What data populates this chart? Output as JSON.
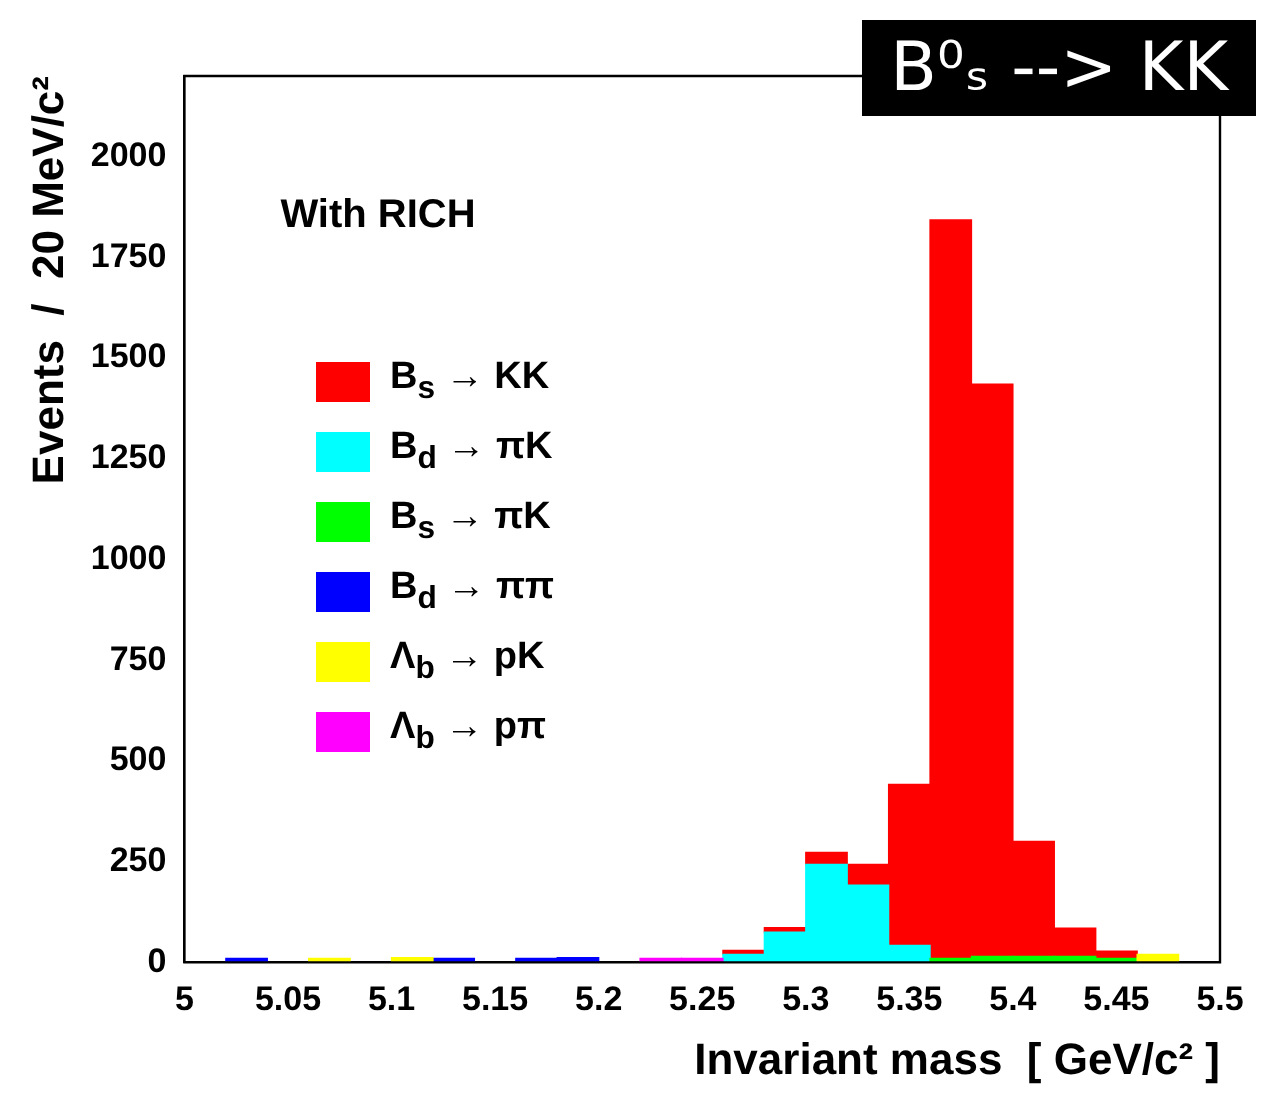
{
  "chart_data": {
    "type": "bar",
    "title": "B⁰ₛ --> KK",
    "xlabel": "Invariant mass  [ GeV/c² ]",
    "ylabel": "Events  /  20 MeV/c²",
    "annotations": [
      "With RICH"
    ],
    "x": [
      5.03,
      5.05,
      5.07,
      5.09,
      5.11,
      5.13,
      5.15,
      5.17,
      5.19,
      5.21,
      5.23,
      5.25,
      5.27,
      5.29,
      5.31,
      5.33,
      5.35,
      5.37,
      5.39,
      5.41,
      5.43,
      5.45,
      5.47
    ],
    "stacked": true,
    "series": [
      {
        "name": "Λ$_{b}$ → pπ",
        "color": "#ff00ff",
        "values": [
          null,
          null,
          null,
          null,
          null,
          null,
          null,
          null,
          null,
          null,
          10,
          10,
          null,
          null,
          null,
          null,
          null,
          null,
          null,
          null,
          null,
          null,
          null
        ]
      },
      {
        "name": "Λ$_{b}$ → pK",
        "color": "#ffff00",
        "values": [
          null,
          null,
          10,
          null,
          12,
          null,
          null,
          null,
          null,
          null,
          null,
          null,
          null,
          null,
          null,
          null,
          null,
          null,
          null,
          null,
          null,
          null,
          20
        ]
      },
      {
        "name": "B$_{d}$ → ππ",
        "color": "#0000ff",
        "values": [
          10,
          null,
          null,
          null,
          null,
          10,
          null,
          10,
          12,
          null,
          null,
          null,
          null,
          null,
          null,
          null,
          null,
          null,
          null,
          null,
          null,
          null,
          null
        ]
      },
      {
        "name": "B$_{s}$ → πK",
        "color": "#00ff00",
        "values": [
          null,
          null,
          null,
          null,
          null,
          null,
          null,
          null,
          null,
          null,
          null,
          null,
          null,
          null,
          null,
          null,
          null,
          10,
          15,
          15,
          15,
          10,
          null
        ]
      },
      {
        "name": "B$_{d}$ → πK",
        "color": "#00ffff",
        "values": [
          null,
          null,
          null,
          null,
          null,
          null,
          null,
          null,
          null,
          null,
          null,
          null,
          20,
          75,
          243,
          192,
          42,
          null,
          null,
          null,
          null,
          null,
          null
        ]
      },
      {
        "name": "B$_{s}$ → KK",
        "color": "#ff0000",
        "values": [
          null,
          null,
          null,
          null,
          null,
          null,
          null,
          null,
          null,
          null,
          null,
          null,
          10,
          11,
          30,
          51,
          400,
          1833,
          1420,
          285,
          70,
          18,
          null
        ]
      }
    ],
    "xlim": [
      5,
      5.5
    ],
    "xticks": [
      5,
      5.05,
      5.1,
      5.15,
      5.2,
      5.25,
      5.3,
      5.35,
      5.4,
      5.45,
      5.5
    ],
    "ylim": [
      0,
      2200
    ],
    "yticks": [
      0,
      250,
      500,
      750,
      1000,
      1250,
      1500,
      1750,
      2000
    ],
    "grid": false,
    "legend": "left"
  }
}
